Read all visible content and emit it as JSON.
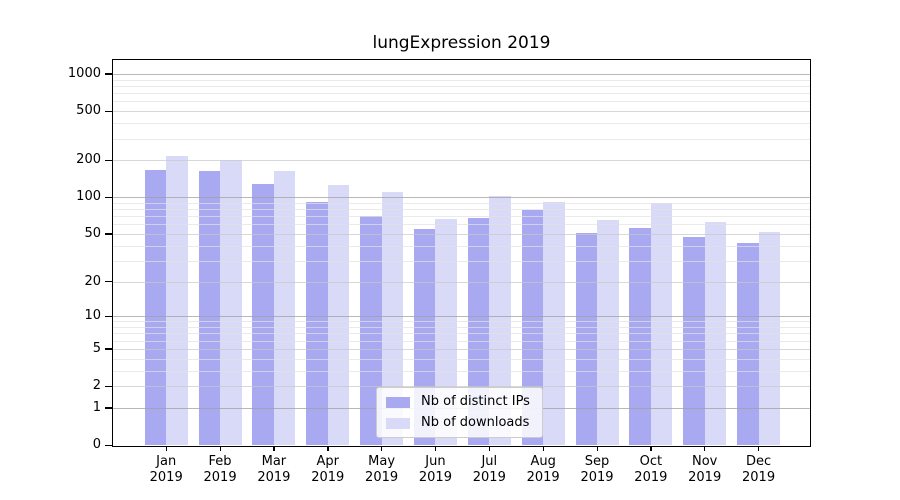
{
  "chart_data": {
    "type": "bar",
    "title": "lungExpression 2019",
    "categories": [
      "Jan 2019",
      "Feb 2019",
      "Mar 2019",
      "Apr 2019",
      "May 2019",
      "Jun 2019",
      "Jul 2019",
      "Aug 2019",
      "Sep 2019",
      "Oct 2019",
      "Nov 2019",
      "Dec 2019"
    ],
    "series": [
      {
        "name": "Nb of distinct IPs",
        "color": "#a9a9f1",
        "values": [
          165,
          163,
          127,
          92,
          70,
          55,
          68,
          79,
          51,
          56,
          47,
          42
        ]
      },
      {
        "name": "Nb of downloads",
        "color": "#d9d9f8",
        "values": [
          215,
          202,
          163,
          126,
          110,
          66,
          102,
          91,
          65,
          89,
          63,
          52
        ]
      }
    ],
    "xlabel": "",
    "ylabel": "",
    "yscale": "log1p",
    "y_ticks": [
      0,
      1,
      2,
      5,
      10,
      20,
      50,
      100,
      200,
      500,
      1000
    ],
    "ylim": [
      0,
      1300
    ],
    "grid": true,
    "legend_position": "lower center inside"
  },
  "colors": {
    "bar_distinct_ips": "#a9a9f1",
    "bar_downloads": "#d9d9f8",
    "grid_major": "#a0a0a0",
    "grid_minor": "#e1e1e1",
    "axis_frame": "#000000",
    "background": "#ffffff"
  }
}
